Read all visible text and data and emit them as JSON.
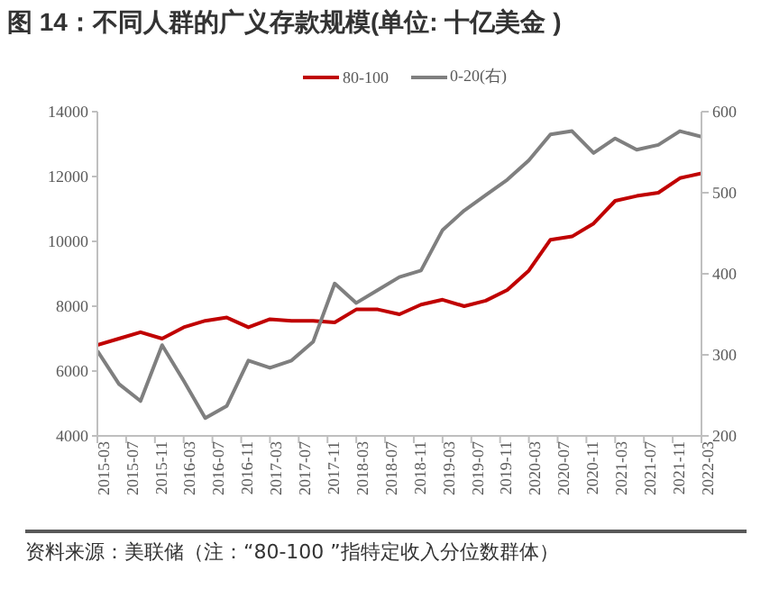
{
  "chart_data": {
    "type": "line",
    "title": "图 14：不同人群的广义存款规模(单位: 十亿美金 )",
    "x": [
      "2015-03",
      "2015-06",
      "2015-09",
      "2015-12",
      "2016-03",
      "2016-06",
      "2016-09",
      "2016-12",
      "2017-03",
      "2017-06",
      "2017-09",
      "2017-12",
      "2018-03",
      "2018-06",
      "2018-09",
      "2018-12",
      "2019-03",
      "2019-06",
      "2019-09",
      "2019-12",
      "2020-03",
      "2020-06",
      "2020-09",
      "2020-12",
      "2021-03",
      "2021-06",
      "2021-09",
      "2021-12",
      "2022-03"
    ],
    "series": [
      {
        "name": "80-100",
        "color": "#c00000",
        "values": [
          6800,
          7000,
          7200,
          7000,
          7350,
          7550,
          7650,
          7350,
          7600,
          7550,
          7550,
          7500,
          7900,
          7900,
          7750,
          8050,
          8200,
          8000,
          8170,
          8500,
          9100,
          10050,
          10150,
          10550,
          11250,
          11400,
          11500,
          11950,
          12100
        ]
      },
      {
        "name": "0-20(右)",
        "color": "#7f7f7f",
        "axis": "y2",
        "values": [
          305,
          264,
          243,
          312,
          268,
          222,
          237,
          293,
          284,
          293,
          316,
          388,
          364,
          380,
          396,
          404,
          454,
          478,
          497,
          516,
          540,
          572,
          576,
          549,
          567,
          553,
          559,
          576,
          569
        ]
      }
    ],
    "xlim": [
      "2015-03",
      "2022-03"
    ],
    "xticks": [
      "2015-03",
      "2015-07",
      "2015-11",
      "2016-03",
      "2016-07",
      "2016-11",
      "2017-03",
      "2017-07",
      "2017-11",
      "2018-03",
      "2018-07",
      "2018-11",
      "2019-03",
      "2019-07",
      "2019-11",
      "2020-03",
      "2020-07",
      "2020-11",
      "2021-03",
      "2021-07",
      "2021-11",
      "2022-03"
    ],
    "ylim": [
      4000,
      14000
    ],
    "yticks": [
      4000,
      6000,
      8000,
      10000,
      12000,
      14000
    ],
    "y2lim": [
      200,
      600
    ],
    "y2ticks": [
      200,
      300,
      400,
      500,
      600
    ],
    "legend": "top",
    "marker": "none",
    "line_style": "solid",
    "annotations": [
      "资料来源：美联储（注：“80-100 ”指特定收入分位数群体）"
    ]
  }
}
